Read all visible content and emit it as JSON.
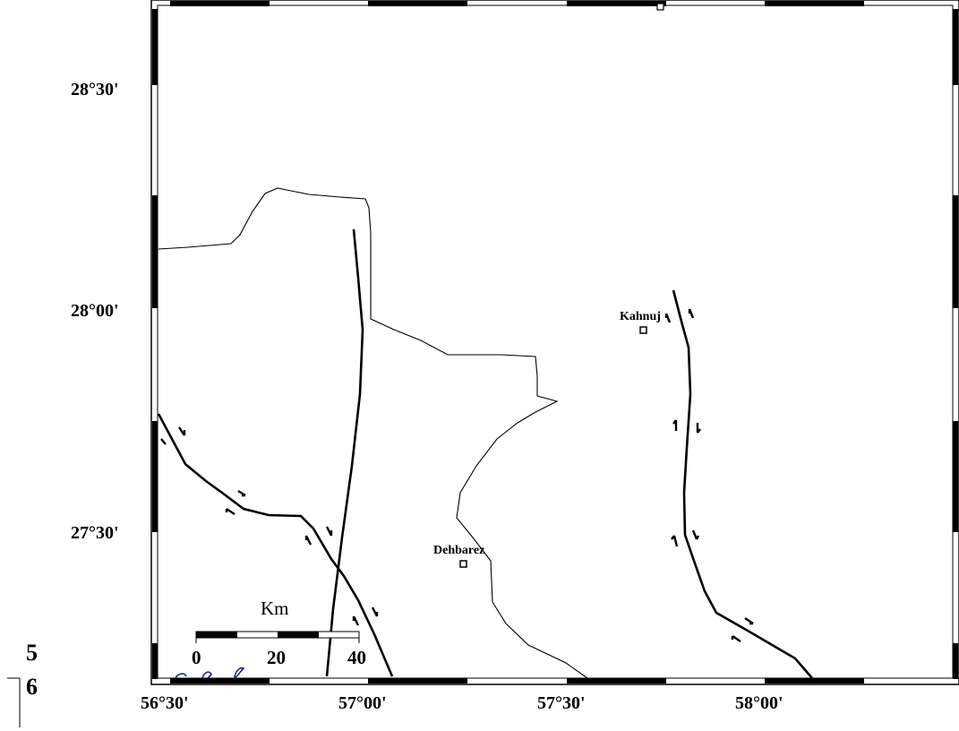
{
  "map": {
    "latitude_labels": [
      "28°30'",
      "28°00'",
      "27°30'"
    ],
    "longitude_labels": [
      "56°30'",
      "57°00'",
      "57°30'",
      "58°00'"
    ],
    "towns": [
      {
        "name": "Kahnuj",
        "lon": 57.706,
        "lat": 27.947
      },
      {
        "name": "Dehbarez",
        "lon": 57.217,
        "lat": 27.433
      }
    ],
    "scale_bar": {
      "unit": "Km",
      "ticks": [
        "0",
        "20",
        "40"
      ]
    },
    "extent": {
      "lon_min": 56.5,
      "lon_max": 58.5,
      "lat_min": 27.3,
      "lat_max": 28.7
    },
    "colors": {
      "frame": "#000000",
      "border": "#000000",
      "fault": "#000000",
      "marker": "#1e2a78"
    }
  },
  "page_numbers": [
    "5",
    "6"
  ]
}
